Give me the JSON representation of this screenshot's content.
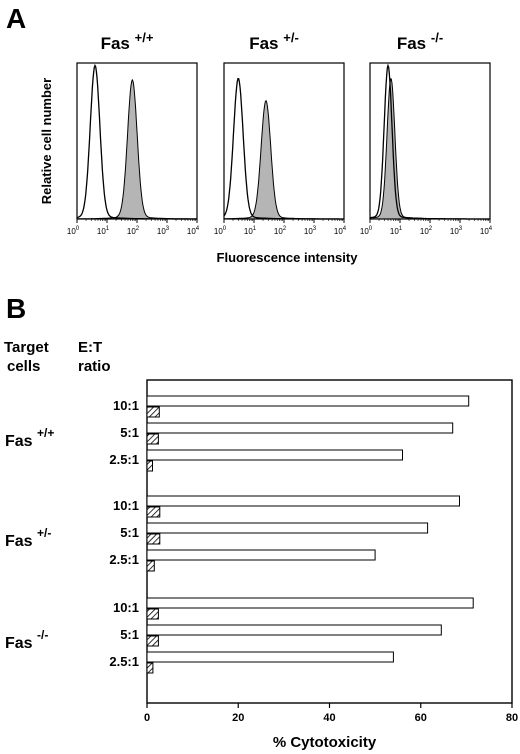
{
  "panels": {
    "a_label": "A",
    "b_label": "B"
  },
  "histograms": {
    "ylabel": "Relative cell number",
    "xlabel": "Fluorescence intensity",
    "tick_base": "10",
    "tick_exponents": [
      "0",
      "1",
      "2",
      "3",
      "4"
    ]
  },
  "bar_panel": {
    "header_target": [
      "Target",
      "cells"
    ],
    "header_ratio": [
      "E:T",
      "ratio"
    ]
  },
  "chart_data": [
    {
      "type": "area",
      "title": "Fas",
      "title_sup": "+/+",
      "xlabel": "Fluorescence intensity",
      "ylabel": "Relative cell number",
      "x_scale": "log",
      "xlim": [
        1,
        10000
      ],
      "series": [
        {
          "fill": "none",
          "peak_x": 4,
          "peak_height": 0.96
        },
        {
          "fill": "gray",
          "peak_x": 70,
          "peak_height": 0.87
        }
      ]
    },
    {
      "type": "area",
      "title": "Fas",
      "title_sup": "+/-",
      "xlabel": "Fluorescence intensity",
      "ylabel": "Relative cell number",
      "x_scale": "log",
      "xlim": [
        1,
        10000
      ],
      "series": [
        {
          "fill": "none",
          "peak_x": 3,
          "peak_height": 0.88
        },
        {
          "fill": "gray",
          "peak_x": 25,
          "peak_height": 0.74
        }
      ]
    },
    {
      "type": "area",
      "title": "Fas",
      "title_sup": "-/-",
      "xlabel": "Fluorescence intensity",
      "ylabel": "Relative cell number",
      "x_scale": "log",
      "xlim": [
        1,
        10000
      ],
      "series": [
        {
          "fill": "none",
          "peak_x": 4,
          "peak_height": 0.96
        },
        {
          "fill": "gray",
          "peak_x": 5,
          "peak_height": 0.88
        }
      ]
    },
    {
      "type": "bar",
      "orientation": "horizontal",
      "xlabel": "% Cytotoxicity",
      "xlim": [
        0,
        80
      ],
      "xticks": [
        "0",
        "20",
        "40",
        "60",
        "80"
      ],
      "groups": [
        {
          "name": "Fas",
          "sup": "+/+",
          "ratios": [
            "10:1",
            "5:1",
            "2.5:1"
          ],
          "open_values": [
            70.5,
            67,
            56
          ],
          "hatched_values": [
            2.7,
            2.5,
            1.2
          ]
        },
        {
          "name": "Fas",
          "sup": "+/-",
          "ratios": [
            "10:1",
            "5:1",
            "2.5:1"
          ],
          "open_values": [
            68.5,
            61.5,
            50
          ],
          "hatched_values": [
            2.8,
            2.8,
            1.6
          ]
        },
        {
          "name": "Fas",
          "sup": "-/-",
          "ratios": [
            "10:1",
            "5:1",
            "2.5:1"
          ],
          "open_values": [
            71.5,
            64.5,
            54
          ],
          "hatched_values": [
            2.5,
            2.5,
            1.3
          ]
        }
      ]
    }
  ]
}
